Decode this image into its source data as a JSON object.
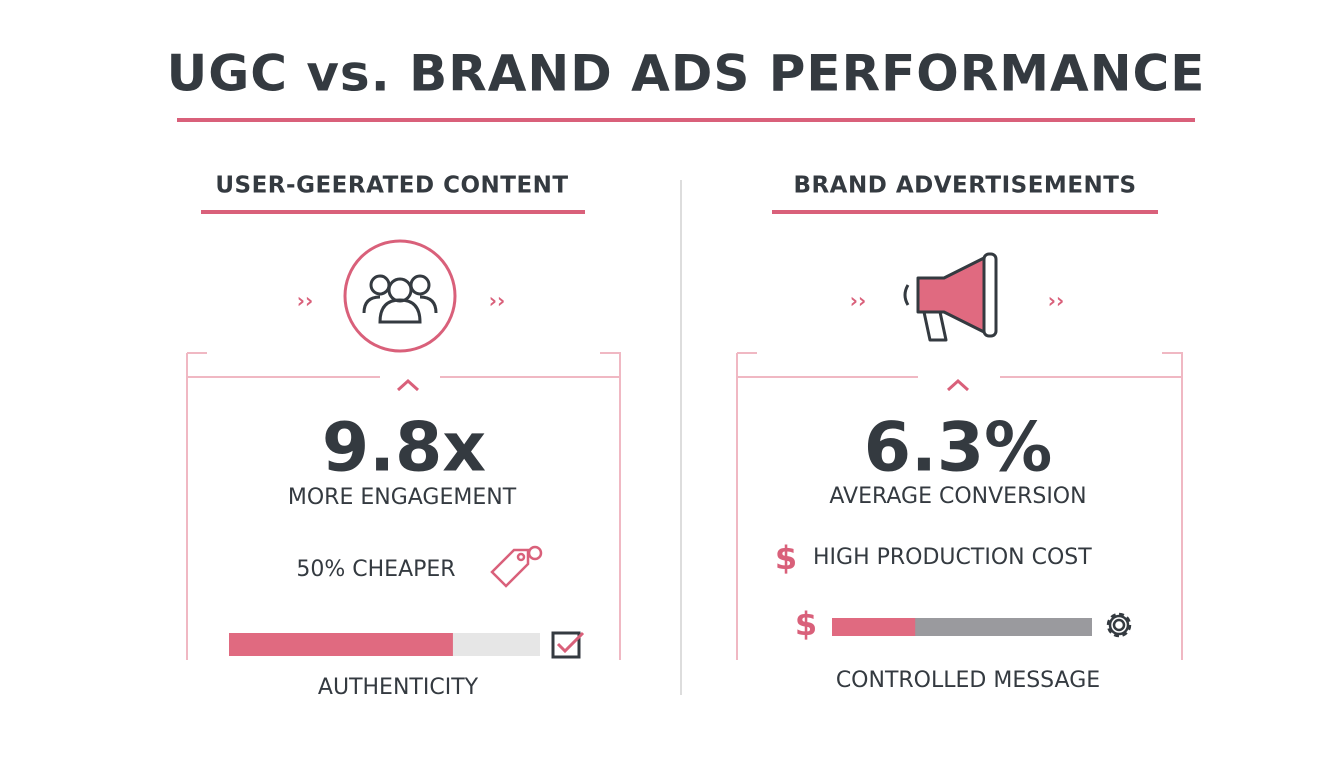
{
  "title": "UGC vs. BRAND ADS PERFORMANCE",
  "left": {
    "heading": "USER-GEERATED CONTENT",
    "stat": "9.8x",
    "stat_label": "MORE ENGAGEMENT",
    "note": "50% CHEAPER",
    "bar_value": 72,
    "bar_range": [
      0,
      100
    ],
    "bar_label": "AUTHENTICITY"
  },
  "right": {
    "heading": "BRAND ADVERTISEMENTS",
    "stat": "6.3%",
    "stat_label": "AVERAGE CONVERSION",
    "currency_symbol": "$",
    "note": "HIGH PRODUCTION COST",
    "bar_value": 32,
    "bar_range": [
      0,
      100
    ],
    "bar_label": "CONTROLLED MESSAGE"
  }
}
